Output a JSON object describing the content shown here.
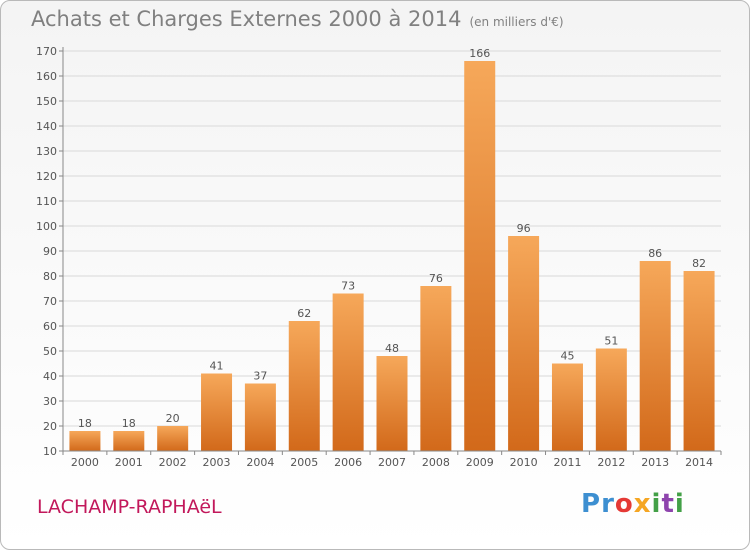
{
  "title": "Achats et Charges Externes 2000 à 2014",
  "subtitle": "(en milliers d'€)",
  "town": "LACHAMP-RAPHAëL",
  "brand": {
    "text": "Proxiti",
    "letters": [
      {
        "ch": "P",
        "color": "#3d8fd1"
      },
      {
        "ch": "r",
        "color": "#3d8fd1"
      },
      {
        "ch": "o",
        "color": "#e53935"
      },
      {
        "ch": "x",
        "color": "#f5a623"
      },
      {
        "ch": "i",
        "color": "#43a047"
      },
      {
        "ch": "t",
        "color": "#8e44ad"
      },
      {
        "ch": "i",
        "color": "#43a047"
      }
    ]
  },
  "colors": {
    "bar_top": "#f6a85a",
    "bar_bottom": "#d2691a",
    "grid": "#d9d9d9",
    "axis": "#888888"
  },
  "chart_data": {
    "type": "bar",
    "categories": [
      "2000",
      "2001",
      "2002",
      "2003",
      "2004",
      "2005",
      "2006",
      "2007",
      "2008",
      "2009",
      "2010",
      "2011",
      "2012",
      "2013",
      "2014"
    ],
    "values": [
      18,
      18,
      20,
      41,
      37,
      62,
      73,
      48,
      76,
      166,
      96,
      45,
      51,
      86,
      82
    ],
    "ylim": [
      10,
      170
    ],
    "yticks": [
      10,
      20,
      30,
      40,
      50,
      60,
      70,
      80,
      90,
      100,
      110,
      120,
      130,
      140,
      150,
      160,
      170
    ],
    "grid": true,
    "xlabel": "",
    "ylabel": ""
  }
}
